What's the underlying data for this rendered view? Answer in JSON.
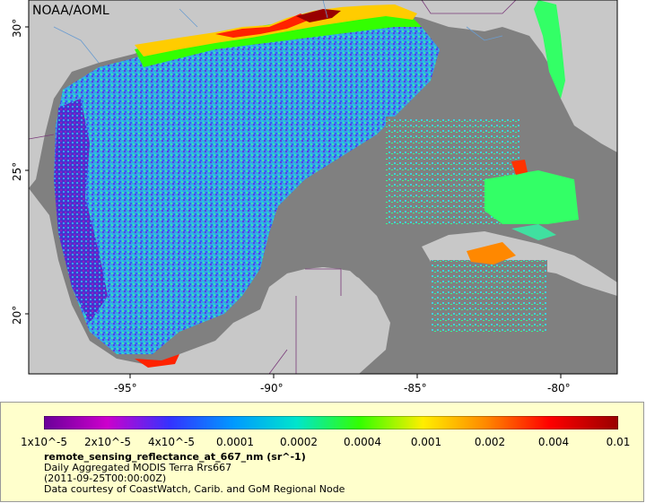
{
  "credit": "NOAA/AOML",
  "axes": {
    "lon_labels": [
      "-95°",
      "-90°",
      "-85°",
      "-80°"
    ],
    "lat_labels": [
      "30°",
      "25°",
      "20°"
    ]
  },
  "colorbar": {
    "labels": [
      "1x10^-5",
      "2x10^-5",
      "4x10^-5",
      "0.0001",
      "0.0002",
      "0.0004",
      "0.001",
      "0.002",
      "0.004",
      "0.01"
    ],
    "colors": [
      "#6a0099",
      "#cc00cc",
      "#3333ff",
      "#0099ff",
      "#00e5cc",
      "#33ff00",
      "#ffee00",
      "#ff8800",
      "#ff0000",
      "#990000"
    ]
  },
  "legend": {
    "variable": "remote_sensing_reflectance_at_667_nm (sr^-1)",
    "line1": "Daily Aggregated MODIS Terra Rrs667",
    "line2": "(2011-09-25T00:00:00Z)",
    "line3": "Data courtesy of CoastWatch, Carib. and GoM Regional Node"
  },
  "colors": {
    "land": "#c8c8c8",
    "no_data": "#808080",
    "legend_bg": "#ffffcc"
  }
}
